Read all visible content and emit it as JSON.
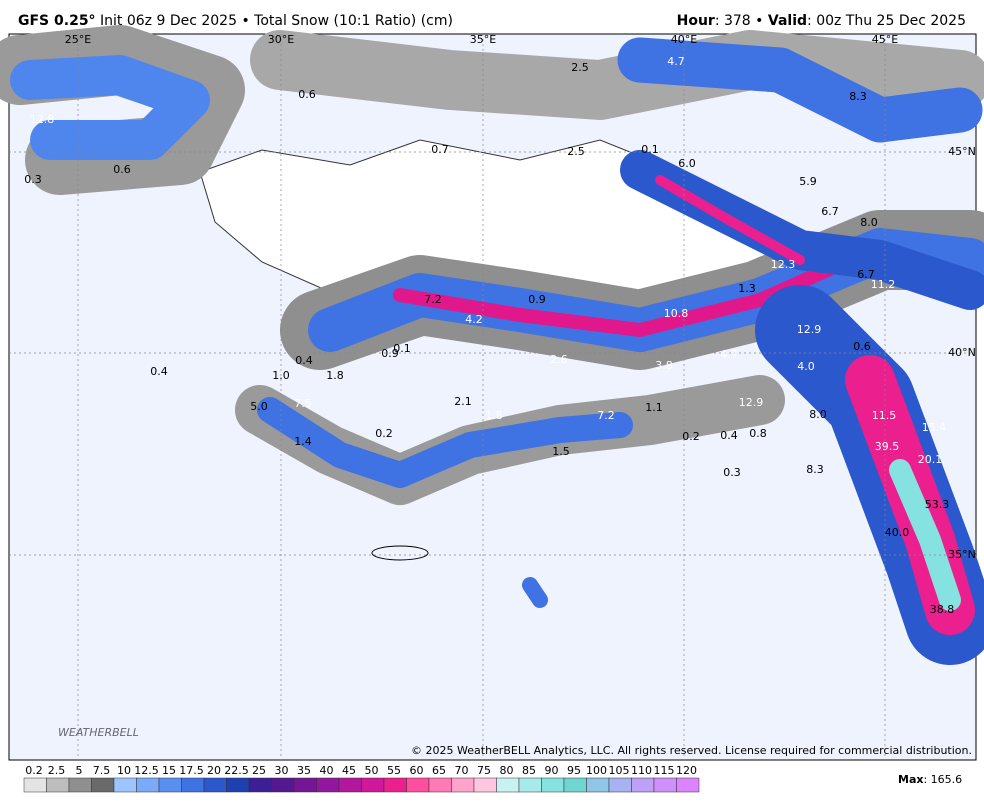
{
  "header": {
    "model": "GFS 0.25°",
    "description": "Init 06z 9 Dec 2025 • Total Snow (10:1 Ratio) (cm)",
    "hour_label": "Hour",
    "hour_value": ": 378 •",
    "valid_label": "Valid",
    "valid_value": ": 00z Thu 25 Dec 2025"
  },
  "map": {
    "longitude_labels": [
      "25°E",
      "30°E",
      "35°E",
      "40°E",
      "45°E"
    ],
    "latitude_labels": [
      "45°N",
      "40°N",
      "35°N"
    ],
    "value_labels": [
      "12.8",
      "0.3",
      "0.6",
      "0.6",
      "0.7",
      "2.5",
      "2.5",
      "4.7",
      "8.3",
      "0.1",
      "6.0",
      "5.9",
      "6.7",
      "8.0",
      "12.3",
      "6.7",
      "11.2",
      "1.3",
      "7.2",
      "0.9",
      "4.2",
      "10.8",
      "12.9",
      "0.6",
      "0.4",
      "0.9",
      "0.1",
      "2.6",
      "3.8",
      "4.7",
      "4.0",
      "0.4",
      "1.0",
      "1.8",
      "5.0",
      "7.5",
      "2.1",
      "1.8",
      "7.2",
      "1.1",
      "12.9",
      "8.0",
      "11.5",
      "15.4",
      "0.2",
      "1.4",
      "0.2",
      "0.4",
      "0.8",
      "39.5",
      "20.1",
      "1.5",
      "0.3",
      "8.3",
      "53.3",
      "40.0",
      "38.8"
    ],
    "logo": "WEATHERBELL",
    "copyright": "© 2025 WeatherBELL Analytics, LLC. All rights reserved. License required for commercial distribution."
  },
  "legend": {
    "ticks": [
      0.2,
      2.5,
      5,
      7.5,
      10,
      12.5,
      15,
      17.5,
      20,
      22.5,
      25,
      30,
      35,
      40,
      45,
      50,
      55,
      60,
      65,
      70,
      75,
      80,
      85,
      90,
      95,
      100,
      105,
      110,
      115,
      120
    ],
    "colors": [
      "#e4e4e4",
      "#bdbdbd",
      "#8f8f8f",
      "#6a6a6a",
      "#9cc4ff",
      "#7aaaf8",
      "#5a8ef0",
      "#3f72e2",
      "#2b58cc",
      "#1f40b0",
      "#3a1f96",
      "#55188f",
      "#741696",
      "#93169e",
      "#b3179e",
      "#d0189a",
      "#ec1f8f",
      "#ff4d9f",
      "#ff79b6",
      "#ffa3cc",
      "#ffc6df",
      "#c8f2f2",
      "#a6ebea",
      "#86e2e0",
      "#6fd6d2",
      "#8fc6e6",
      "#a8b2f0",
      "#bea0f6",
      "#cf90fb",
      "#dc84ff"
    ],
    "max_label": "Max",
    "max_value": ": 165.6"
  }
}
